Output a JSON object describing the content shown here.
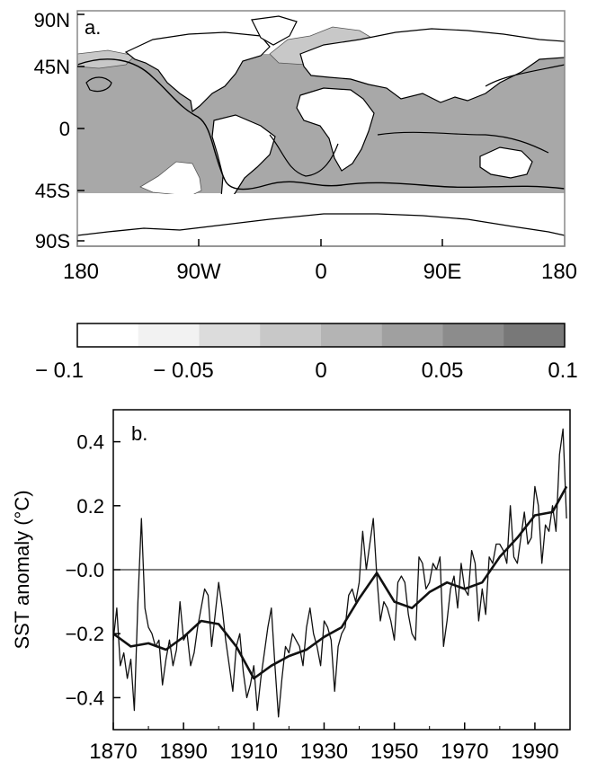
{
  "map_panel": {
    "panel_label": "a.",
    "lat_ticks": [
      "90N",
      "45N",
      "0",
      "45S",
      "90S"
    ],
    "lon_ticks": [
      "180",
      "90W",
      "0",
      "90E",
      "180"
    ]
  },
  "colorbar": {
    "ticks": [
      "− 0.1",
      "− 0.05",
      "0",
      "0.05",
      "0.1"
    ],
    "colors": [
      "#ffffff",
      "#f2f2f2",
      "#dcdcdc",
      "#c8c8c8",
      "#b4b4b4",
      "#a0a0a0",
      "#8c8c8c",
      "#787878"
    ]
  },
  "chart_data": {
    "type": "line",
    "panel_label": "b.",
    "ylabel": "SST anomaly (°C)",
    "xlim": [
      1870,
      2000
    ],
    "ylim": [
      -0.5,
      0.5
    ],
    "xticks": [
      1870,
      1890,
      1910,
      1930,
      1950,
      1970,
      1990
    ],
    "xtick_labels": [
      "1870",
      "1890",
      "1910",
      "1930",
      "1950",
      "1970",
      "1990"
    ],
    "yticks": [
      0.4,
      0.2,
      0.0,
      -0.2,
      -0.4
    ],
    "ytick_labels": [
      "0.4",
      "0.2",
      "−0.0",
      "−0.2",
      "−0.4"
    ],
    "zero_line": true,
    "series": [
      {
        "style": "monthly",
        "x": [
          1870,
          1871,
          1872,
          1873,
          1874,
          1875,
          1876,
          1877,
          1878,
          1879,
          1880,
          1881,
          1882,
          1883,
          1884,
          1885,
          1886,
          1887,
          1888,
          1889,
          1890,
          1891,
          1892,
          1893,
          1894,
          1895,
          1896,
          1897,
          1898,
          1899,
          1900,
          1901,
          1902,
          1903,
          1904,
          1905,
          1906,
          1907,
          1908,
          1909,
          1910,
          1911,
          1912,
          1913,
          1914,
          1915,
          1916,
          1917,
          1918,
          1919,
          1920,
          1921,
          1922,
          1923,
          1924,
          1925,
          1926,
          1927,
          1928,
          1929,
          1930,
          1931,
          1932,
          1933,
          1934,
          1935,
          1936,
          1937,
          1938,
          1939,
          1940,
          1941,
          1942,
          1943,
          1944,
          1945,
          1946,
          1947,
          1948,
          1949,
          1950,
          1951,
          1952,
          1953,
          1954,
          1955,
          1956,
          1957,
          1958,
          1959,
          1960,
          1961,
          1962,
          1963,
          1964,
          1965,
          1966,
          1967,
          1968,
          1969,
          1970,
          1971,
          1972,
          1973,
          1974,
          1975,
          1976,
          1977,
          1978,
          1979,
          1980,
          1981,
          1982,
          1983,
          1984,
          1985,
          1986,
          1987,
          1988,
          1989,
          1990,
          1991,
          1992,
          1993,
          1994,
          1995,
          1996,
          1997,
          1998,
          1999
        ],
        "y": [
          -0.22,
          -0.12,
          -0.3,
          -0.26,
          -0.34,
          -0.28,
          -0.44,
          -0.1,
          0.16,
          -0.12,
          -0.18,
          -0.2,
          -0.24,
          -0.22,
          -0.36,
          -0.28,
          -0.22,
          -0.3,
          -0.25,
          -0.1,
          -0.22,
          -0.2,
          -0.3,
          -0.26,
          -0.18,
          -0.12,
          -0.06,
          -0.08,
          -0.24,
          -0.14,
          -0.04,
          -0.12,
          -0.22,
          -0.3,
          -0.38,
          -0.24,
          -0.2,
          -0.32,
          -0.4,
          -0.36,
          -0.3,
          -0.44,
          -0.34,
          -0.26,
          -0.18,
          -0.12,
          -0.3,
          -0.46,
          -0.34,
          -0.24,
          -0.26,
          -0.2,
          -0.22,
          -0.24,
          -0.3,
          -0.18,
          -0.12,
          -0.2,
          -0.24,
          -0.3,
          -0.16,
          -0.18,
          -0.22,
          -0.38,
          -0.24,
          -0.2,
          -0.18,
          -0.08,
          -0.06,
          -0.1,
          -0.04,
          0.12,
          0.0,
          0.08,
          0.16,
          -0.02,
          -0.16,
          -0.1,
          -0.12,
          -0.16,
          -0.22,
          -0.04,
          -0.02,
          -0.04,
          -0.14,
          -0.2,
          -0.22,
          0.04,
          0.02,
          -0.06,
          -0.04,
          0.02,
          0.0,
          0.04,
          -0.24,
          -0.16,
          -0.06,
          -0.02,
          -0.12,
          0.02,
          -0.06,
          -0.08,
          0.06,
          0.02,
          -0.16,
          -0.06,
          -0.14,
          0.04,
          0.02,
          0.08,
          0.08,
          0.06,
          0.02,
          0.2,
          0.04,
          0.02,
          0.1,
          0.18,
          0.08,
          0.1,
          0.26,
          0.2,
          0.02,
          0.14,
          0.12,
          0.2,
          0.12,
          0.36,
          0.44,
          0.16
        ]
      },
      {
        "style": "smoothed",
        "x": [
          1870,
          1875,
          1880,
          1885,
          1890,
          1895,
          1900,
          1905,
          1910,
          1915,
          1920,
          1925,
          1930,
          1935,
          1940,
          1945,
          1950,
          1955,
          1960,
          1965,
          1970,
          1975,
          1980,
          1985,
          1990,
          1995,
          1999
        ],
        "y": [
          -0.2,
          -0.24,
          -0.23,
          -0.25,
          -0.21,
          -0.16,
          -0.17,
          -0.24,
          -0.34,
          -0.3,
          -0.27,
          -0.25,
          -0.21,
          -0.18,
          -0.09,
          -0.01,
          -0.1,
          -0.12,
          -0.07,
          -0.04,
          -0.06,
          -0.04,
          0.04,
          0.1,
          0.17,
          0.18,
          0.26
        ]
      }
    ]
  }
}
